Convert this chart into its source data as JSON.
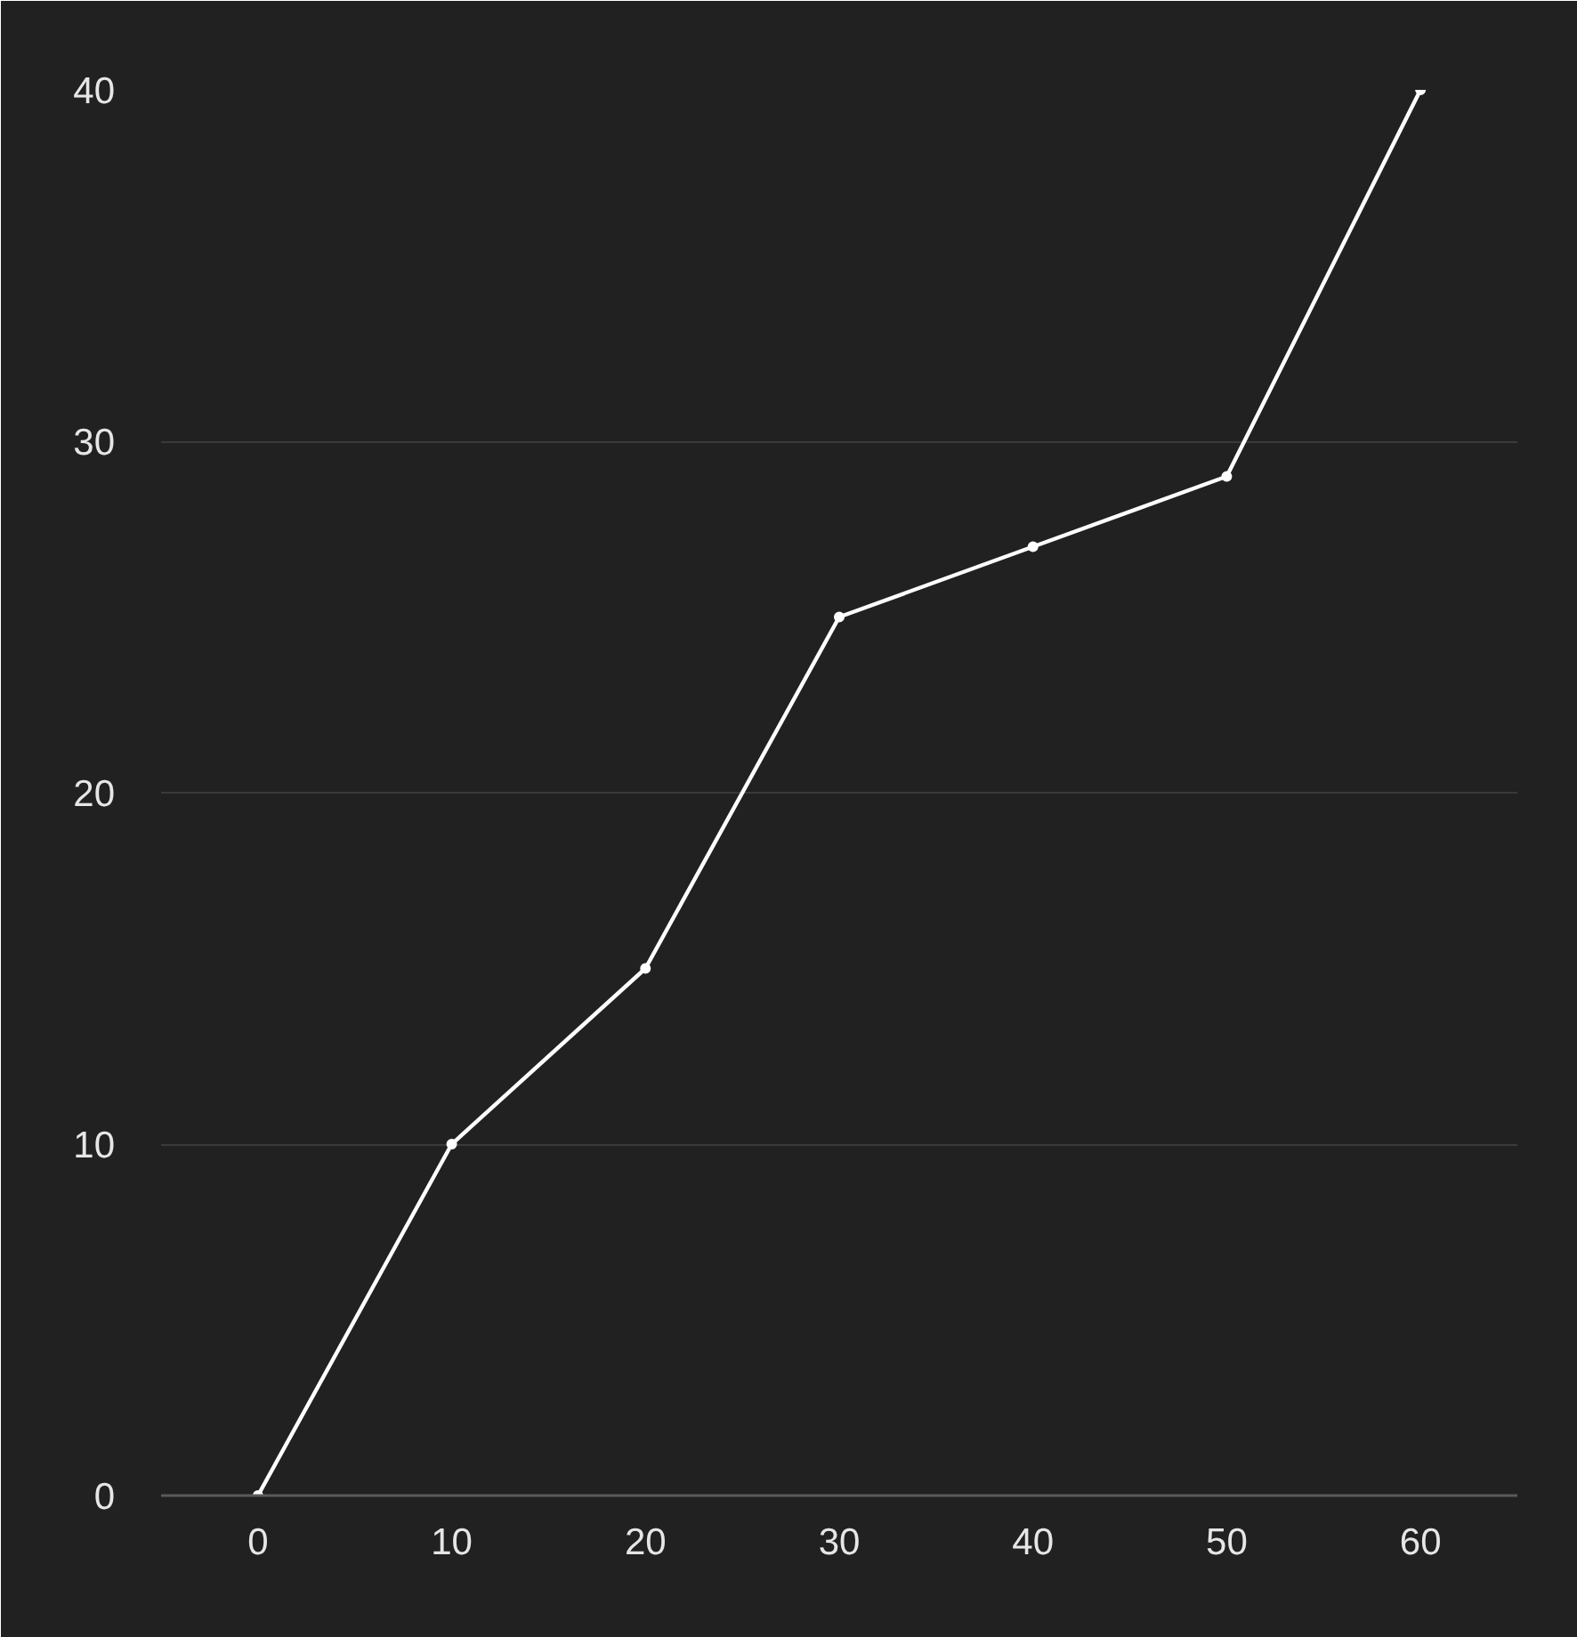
{
  "chart_data": {
    "type": "line",
    "x": [
      0,
      10,
      20,
      30,
      40,
      50,
      60
    ],
    "values": [
      0,
      10,
      15,
      25,
      27,
      29,
      40
    ],
    "color": "#ffffff",
    "xlim": [
      -5,
      65
    ],
    "ylim": [
      0,
      40
    ],
    "xticks": [
      0,
      10,
      20,
      30,
      40,
      50,
      60
    ],
    "yticks": [
      0,
      10,
      20,
      30,
      40
    ],
    "grid": "y",
    "marker": "circle",
    "line_style": "solid"
  }
}
